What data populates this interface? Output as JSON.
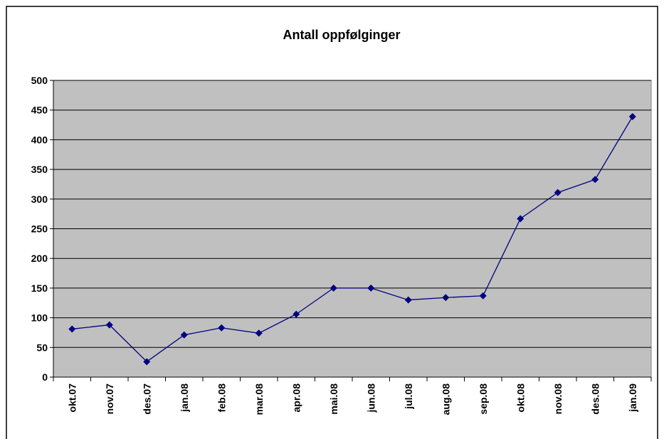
{
  "chart_data": {
    "type": "line",
    "title": "Antall oppfølginger",
    "categories": [
      "okt.07",
      "nov.07",
      "des.07",
      "jan.08",
      "feb.08",
      "mar.08",
      "apr.08",
      "mai.08",
      "jun.08",
      "jul.08",
      "aug.08",
      "sep.08",
      "okt.08",
      "nov.08",
      "des.08",
      "jan.09"
    ],
    "series": [
      {
        "color": "#000080",
        "values": [
          81,
          88,
          26,
          71,
          83,
          74,
          106,
          150,
          150,
          130,
          134,
          137,
          267,
          311,
          333,
          439
        ]
      }
    ],
    "ylim": [
      0,
      500
    ],
    "yticks": [
      0,
      50,
      100,
      150,
      200,
      250,
      300,
      350,
      400,
      450,
      500
    ],
    "grid": true,
    "plot_background": "#c0c0c0"
  }
}
